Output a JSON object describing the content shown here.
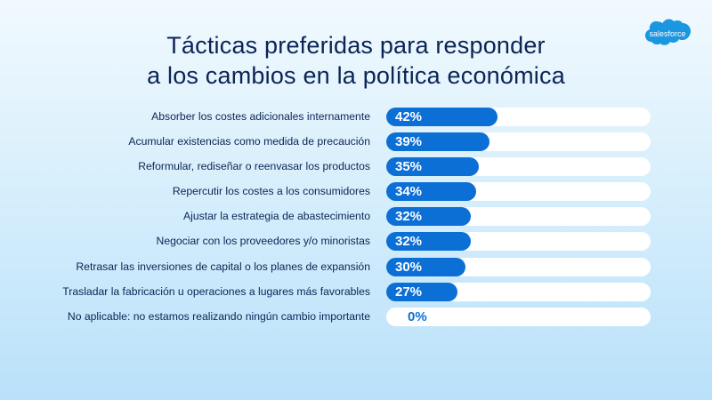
{
  "chart_data": {
    "type": "bar",
    "orientation": "horizontal",
    "title": "Tácticas preferidas para responder a los cambios en la política económica",
    "title_lines": [
      "Tácticas preferidas para responder",
      "a los cambios en la política económica"
    ],
    "categories": [
      "Absorber los costes adicionales internamente",
      "Acumular existencias como medida de precaución",
      "Reformular, rediseñar o reenvasar los productos",
      "Repercutir los costes a los consumidores",
      "Ajustar la estrategia de abastecimiento",
      "Negociar con los proveedores y/o minoristas",
      "Retrasar las inversiones de capital o los planes de expansión",
      "Trasladar la fabricación u operaciones a lugares más favorables",
      "No aplicable: no estamos realizando ningún cambio importante"
    ],
    "values": [
      42,
      39,
      35,
      34,
      32,
      32,
      30,
      27,
      0
    ],
    "value_labels": [
      "42%",
      "39%",
      "35%",
      "34%",
      "32%",
      "32%",
      "30%",
      "27%",
      "0%"
    ],
    "xlim": [
      0,
      100
    ],
    "grid": false,
    "colors": {
      "bar": "#0b6fd6",
      "track": "#ffffff",
      "text": "#0b2455"
    }
  },
  "logo": {
    "text": "salesforce",
    "color": "#1b96e0"
  }
}
